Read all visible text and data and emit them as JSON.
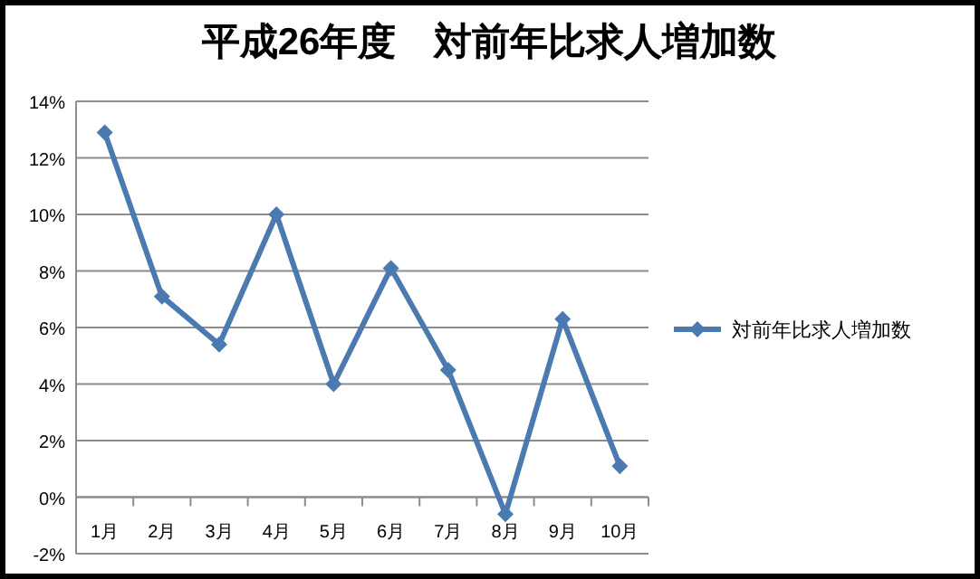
{
  "chart_data": {
    "type": "line",
    "title": "平成26年度　対前年比求人増加数",
    "categories": [
      "1月",
      "2月",
      "3月",
      "4月",
      "5月",
      "6月",
      "7月",
      "8月",
      "9月",
      "10月"
    ],
    "series": [
      {
        "name": "対前年比求人増加数",
        "color": "#4a7ab0",
        "values": [
          12.9,
          7.1,
          5.4,
          10.0,
          4.0,
          8.1,
          4.5,
          -0.6,
          6.3,
          1.1
        ]
      }
    ],
    "ylim": [
      -2,
      14
    ],
    "yticks": [
      {
        "value": -2,
        "label": "-2%"
      },
      {
        "value": 0,
        "label": "0%"
      },
      {
        "value": 2,
        "label": "2%"
      },
      {
        "value": 4,
        "label": "4%"
      },
      {
        "value": 6,
        "label": "6%"
      },
      {
        "value": 8,
        "label": "8%"
      },
      {
        "value": 10,
        "label": "10%"
      },
      {
        "value": 12,
        "label": "12%"
      },
      {
        "value": 14,
        "label": "14%"
      }
    ],
    "grid": "y",
    "legend": "right",
    "marker": "diamond",
    "line_style": "solid"
  }
}
